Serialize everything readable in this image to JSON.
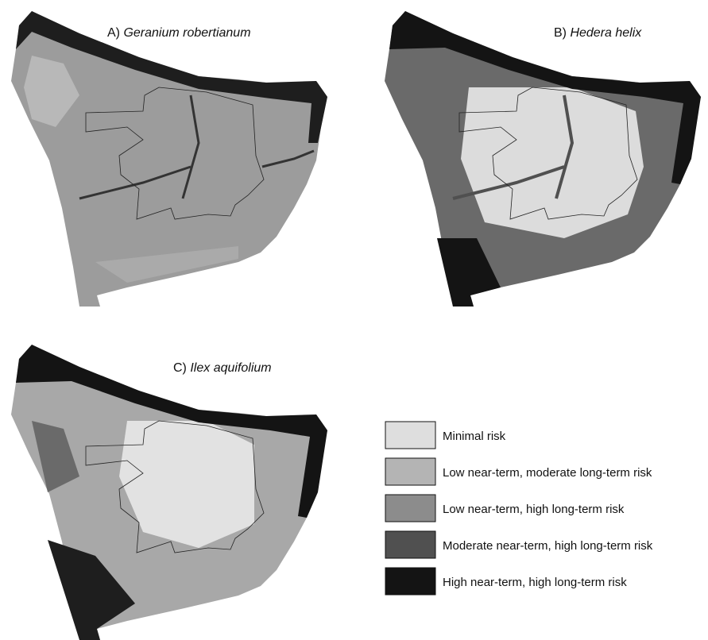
{
  "panels": [
    {
      "label": "A)",
      "species": "Geranium robertianum"
    },
    {
      "label": "B)",
      "species": "Hedera helix"
    },
    {
      "label": "C)",
      "species": "Ilex aquifolium"
    }
  ],
  "legend": [
    {
      "label": "Minimal risk",
      "color": "#dedede"
    },
    {
      "label": "Low near-term, moderate long-term risk",
      "color": "#b4b4b4"
    },
    {
      "label": "Low near-term, high long-term risk",
      "color": "#8c8c8c"
    },
    {
      "label": "Moderate near-term, high long-term risk",
      "color": "#505050"
    },
    {
      "label": "High near-term, high long-term risk",
      "color": "#141414"
    }
  ]
}
